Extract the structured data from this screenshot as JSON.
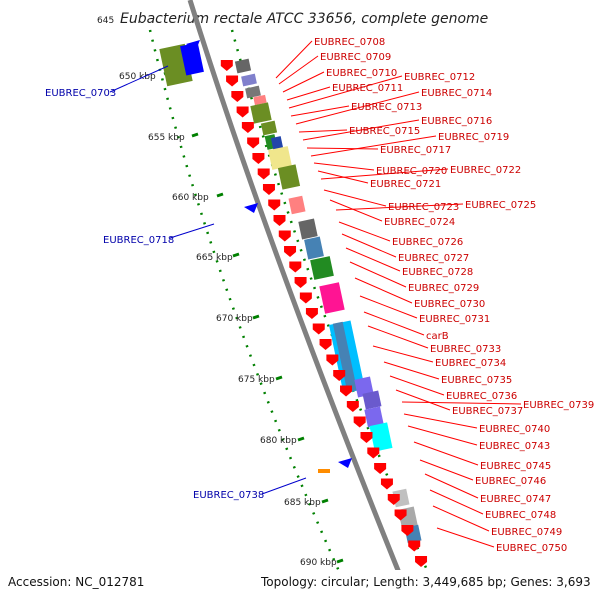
{
  "title": "Eubacterium rectale ATCC 33656, complete genome",
  "top_partial_tick": "645",
  "ticks": [
    "650 kbp",
    "655 kbp",
    "660 kbp",
    "665 kbp",
    "670 kbp",
    "675 kbp",
    "680 kbp",
    "685 kbp",
    "690 kbp"
  ],
  "right_labels": [
    "EUBREC_0708",
    "EUBREC_0709",
    "EUBREC_0710",
    "EUBREC_0711",
    "EUBREC_0712",
    "EUBREC_0713",
    "EUBREC_0714",
    "EUBREC_0715",
    "EUBREC_0716",
    "EUBREC_0717",
    "EUBREC_0719",
    "EUBREC_0720",
    "EUBREC_0721",
    "EUBREC_0722",
    "EUBREC_0723",
    "EUBREC_0724",
    "EUBREC_0725",
    "EUBREC_0726",
    "EUBREC_0727",
    "EUBREC_0728",
    "EUBREC_0729",
    "EUBREC_0730",
    "EUBREC_0731",
    "carB",
    "EUBREC_0733",
    "EUBREC_0734",
    "EUBREC_0735",
    "EUBREC_0736",
    "EUBREC_0737",
    "EUBREC_0739",
    "EUBREC_0740",
    "EUBREC_0743",
    "EUBREC_0745",
    "EUBREC_0746",
    "EUBREC_0747",
    "EUBREC_0748",
    "EUBREC_0749",
    "EUBREC_0750"
  ],
  "left_labels": [
    "EUBREC_0703",
    "EUBREC_0718",
    "EUBREC_0738"
  ],
  "footer": {
    "accession": "Accession: NC_012781",
    "summary": "Topology: circular; Length: 3,449,685 bp; Genes: 3,693"
  },
  "colors": {
    "backbone": "#808080",
    "gene_forward": "#ff0000",
    "gene_reverse": "#0000ff",
    "tick": "#008000",
    "label_right": "#cc0000",
    "label_left": "#0000aa"
  }
}
